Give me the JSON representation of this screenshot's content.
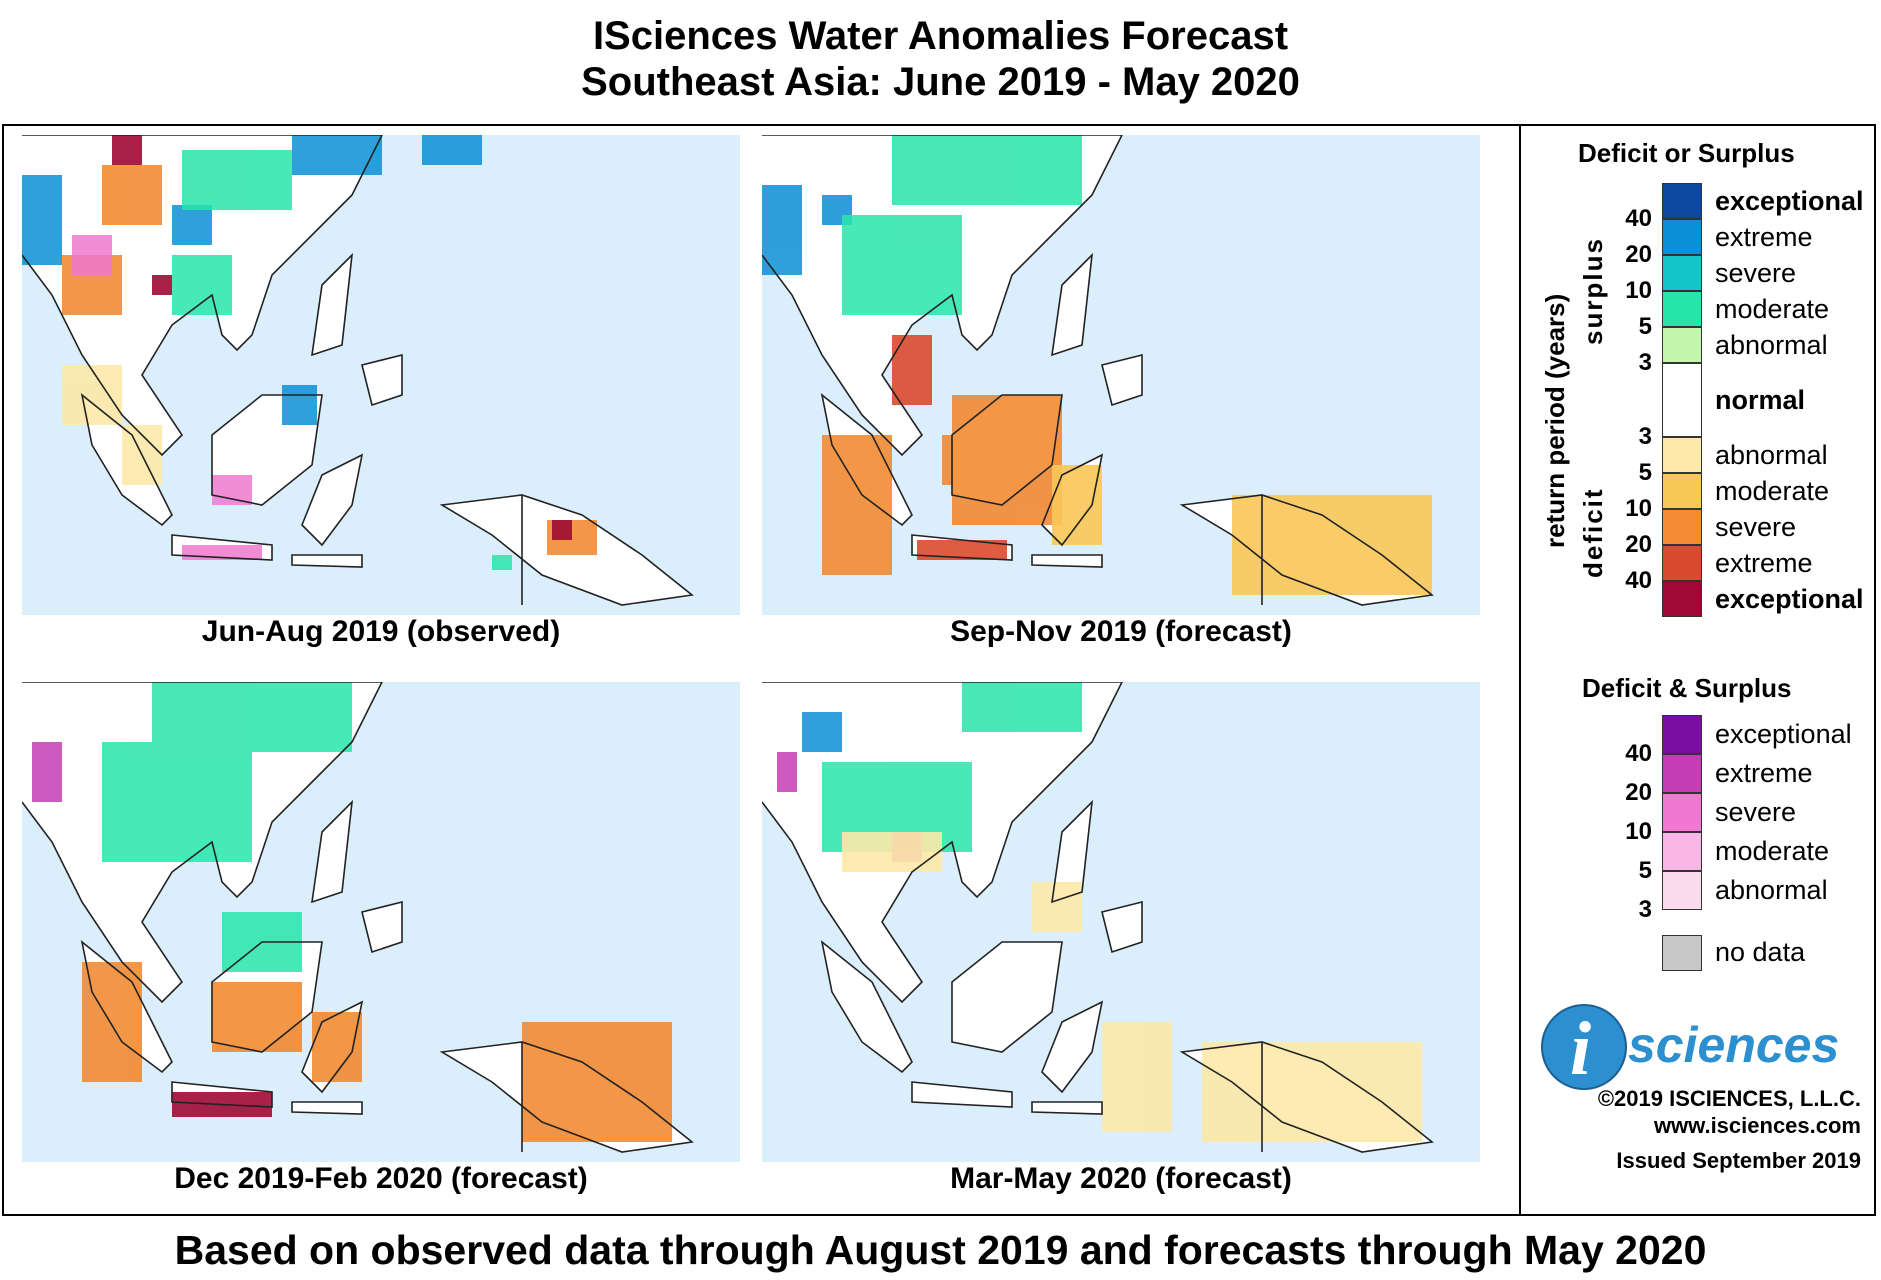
{
  "title_line1": "ISciences Water Anomalies Forecast",
  "title_line2": "Southeast Asia: June 2019 - May 2020",
  "panels": [
    {
      "caption": "Jun-Aug 2019 (observed)"
    },
    {
      "caption": "Sep-Nov 2019 (forecast)"
    },
    {
      "caption": "Dec 2019-Feb 2020 (forecast)"
    },
    {
      "caption": "Mar-May 2020 (forecast)"
    }
  ],
  "legend": {
    "title1": "Deficit or Surplus",
    "axis_label": "return period (years)",
    "surplus_label": "surplus",
    "deficit_label": "deficit",
    "surplus": [
      {
        "label": "exceptional",
        "color": "#0d47a1",
        "bold": true
      },
      {
        "label": "extreme",
        "color": "#0b8fd6"
      },
      {
        "label": "severe",
        "color": "#13c4c8"
      },
      {
        "label": "moderate",
        "color": "#27e5a9"
      },
      {
        "label": "abnormal",
        "color": "#c4f5ac"
      }
    ],
    "surplus_ticks": [
      "40",
      "20",
      "10",
      "5",
      "3"
    ],
    "normal": {
      "label": "normal",
      "color": "#ffffff"
    },
    "deficit": [
      {
        "label": "abnormal",
        "color": "#fde9a9"
      },
      {
        "label": "moderate",
        "color": "#f9c758"
      },
      {
        "label": "severe",
        "color": "#f28b33"
      },
      {
        "label": "extreme",
        "color": "#d94a2e"
      },
      {
        "label": "exceptional",
        "color": "#9e0a33",
        "bold": true
      }
    ],
    "deficit_ticks": [
      "3",
      "5",
      "10",
      "20",
      "40"
    ],
    "title2": "Deficit & Surplus",
    "both": [
      {
        "label": "exceptional",
        "color": "#7b0ea2"
      },
      {
        "label": "extreme",
        "color": "#c43db4"
      },
      {
        "label": "severe",
        "color": "#ef79d0"
      },
      {
        "label": "moderate",
        "color": "#f7b6e5"
      },
      {
        "label": "abnormal",
        "color": "#fbdcef"
      }
    ],
    "both_ticks": [
      "40",
      "20",
      "10",
      "5",
      "3"
    ],
    "nodata": {
      "label": "no data",
      "color": "#c8c8c8"
    }
  },
  "logo": {
    "letter": "i",
    "word": "sciences"
  },
  "credits": {
    "copyright": "©2019 ISCIENCES, L.L.C.",
    "website": "www.isciences.com",
    "issued": "Issued September 2019"
  },
  "footer": "Based on observed data through August 2019 and forecasts through May 2020"
}
